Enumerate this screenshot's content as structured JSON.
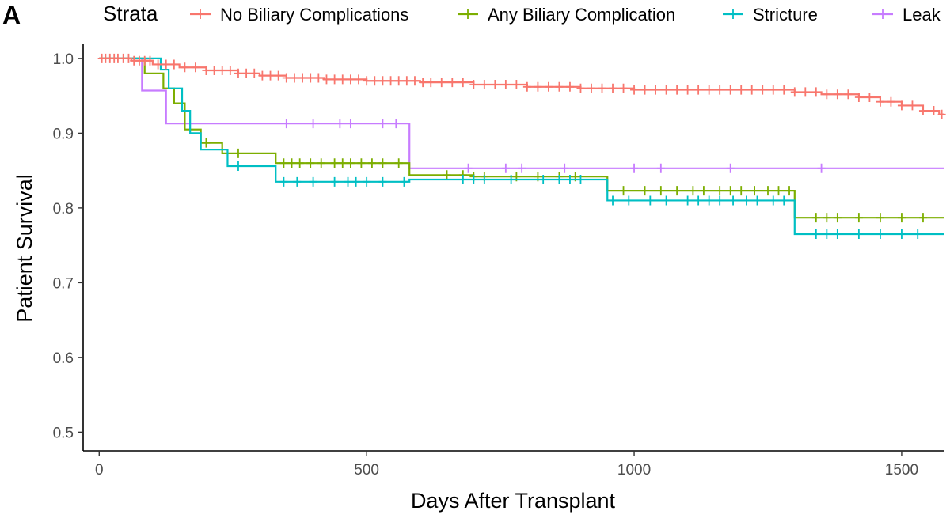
{
  "panel_label": "A",
  "colors": {
    "no_biliary": "#F8766D",
    "any_biliary": "#7CAE00",
    "stricture": "#00BFC4",
    "leak": "#C77CFF",
    "axis": "#000000",
    "tick_label": "#4d4d4d"
  },
  "chart_data": {
    "type": "line",
    "subtype": "kaplan-meier step curves with censor marks",
    "title": "",
    "xlabel": "Days After Transplant",
    "ylabel": "Patient Survival",
    "xlim": [
      -30,
      1580
    ],
    "ylim": [
      0.475,
      1.02
    ],
    "x_ticks": [
      0,
      500,
      1000,
      1500
    ],
    "y_ticks": [
      0.5,
      0.6,
      0.7,
      0.8,
      0.9,
      1.0
    ],
    "x_tick_labels": [
      "0",
      "500",
      "1000",
      "1500"
    ],
    "y_tick_labels": [
      "0.5",
      "0.6",
      "0.7",
      "0.8",
      "0.9",
      "1.0"
    ],
    "grid": false,
    "legend": {
      "title": "Strata",
      "position": "top",
      "entries": [
        "No Biliary Complications",
        "Any Biliary Complication",
        "Stricture",
        "Leak"
      ]
    },
    "series": [
      {
        "name": "No Biliary Complications",
        "color": "#F8766D",
        "steps": [
          [
            0,
            1.0
          ],
          [
            60,
            0.997
          ],
          [
            100,
            0.992
          ],
          [
            150,
            0.988
          ],
          [
            200,
            0.984
          ],
          [
            260,
            0.98
          ],
          [
            300,
            0.977
          ],
          [
            350,
            0.974
          ],
          [
            420,
            0.972
          ],
          [
            500,
            0.97
          ],
          [
            600,
            0.968
          ],
          [
            700,
            0.965
          ],
          [
            800,
            0.962
          ],
          [
            900,
            0.96
          ],
          [
            1000,
            0.958
          ],
          [
            1300,
            0.955
          ],
          [
            1350,
            0.952
          ],
          [
            1420,
            0.948
          ],
          [
            1460,
            0.942
          ],
          [
            1500,
            0.937
          ],
          [
            1540,
            0.93
          ],
          [
            1570,
            0.925
          ],
          [
            1580,
            0.925
          ]
        ],
        "censor_x": [
          5,
          12,
          20,
          28,
          35,
          45,
          55,
          65,
          75,
          85,
          95,
          110,
          125,
          140,
          160,
          180,
          200,
          215,
          230,
          245,
          260,
          275,
          290,
          305,
          320,
          335,
          350,
          365,
          380,
          395,
          410,
          425,
          440,
          455,
          470,
          485,
          500,
          515,
          530,
          545,
          560,
          575,
          590,
          605,
          620,
          640,
          660,
          680,
          700,
          720,
          740,
          760,
          780,
          800,
          820,
          840,
          860,
          880,
          900,
          920,
          940,
          960,
          980,
          1000,
          1020,
          1040,
          1060,
          1080,
          1100,
          1120,
          1140,
          1160,
          1180,
          1200,
          1220,
          1240,
          1260,
          1280,
          1300,
          1320,
          1340,
          1360,
          1380,
          1400,
          1420,
          1440,
          1460,
          1480,
          1500,
          1520,
          1540,
          1560,
          1575
        ]
      },
      {
        "name": "Any Biliary Complication",
        "color": "#7CAE00",
        "steps": [
          [
            0,
            1.0
          ],
          [
            85,
            0.98
          ],
          [
            120,
            0.96
          ],
          [
            140,
            0.94
          ],
          [
            160,
            0.905
          ],
          [
            190,
            0.887
          ],
          [
            230,
            0.873
          ],
          [
            330,
            0.86
          ],
          [
            580,
            0.844
          ],
          [
            700,
            0.842
          ],
          [
            950,
            0.823
          ],
          [
            1300,
            0.787
          ],
          [
            1580,
            0.787
          ]
        ],
        "censor_x": [
          200,
          260,
          345,
          360,
          375,
          395,
          415,
          440,
          455,
          470,
          490,
          510,
          530,
          560,
          650,
          680,
          700,
          720,
          780,
          820,
          860,
          890,
          980,
          1020,
          1050,
          1080,
          1110,
          1130,
          1160,
          1180,
          1200,
          1225,
          1250,
          1270,
          1290,
          1340,
          1360,
          1380,
          1420,
          1460,
          1500,
          1540
        ]
      },
      {
        "name": "Stricture",
        "color": "#00BFC4",
        "steps": [
          [
            0,
            1.0
          ],
          [
            115,
            0.985
          ],
          [
            130,
            0.96
          ],
          [
            155,
            0.93
          ],
          [
            170,
            0.9
          ],
          [
            190,
            0.878
          ],
          [
            240,
            0.856
          ],
          [
            330,
            0.835
          ],
          [
            580,
            0.838
          ],
          [
            950,
            0.81
          ],
          [
            1300,
            0.765
          ],
          [
            1580,
            0.765
          ]
        ],
        "censor_x": [
          260,
          345,
          370,
          400,
          440,
          465,
          480,
          500,
          530,
          570,
          680,
          700,
          720,
          770,
          830,
          860,
          880,
          900,
          960,
          990,
          1030,
          1060,
          1100,
          1120,
          1140,
          1160,
          1185,
          1210,
          1230,
          1260,
          1280,
          1340,
          1360,
          1380,
          1420,
          1460,
          1500,
          1530
        ]
      },
      {
        "name": "Leak",
        "color": "#C77CFF",
        "steps": [
          [
            0,
            1.0
          ],
          [
            80,
            0.957
          ],
          [
            125,
            0.913
          ],
          [
            580,
            0.853
          ],
          [
            1580,
            0.853
          ]
        ],
        "censor_x": [
          350,
          400,
          450,
          470,
          530,
          555,
          690,
          760,
          790,
          870,
          1000,
          1050,
          1180,
          1350
        ]
      }
    ]
  }
}
